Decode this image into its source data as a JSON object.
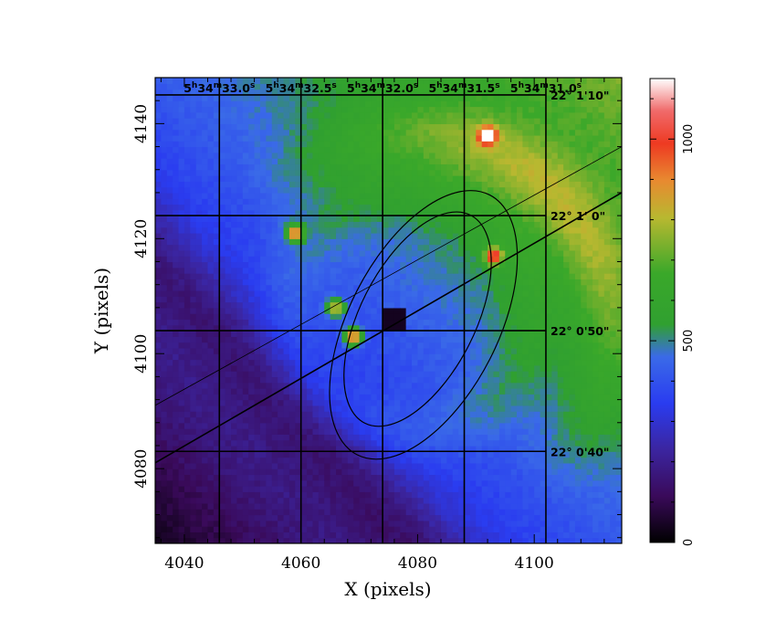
{
  "chart_data": {
    "type": "heatmap",
    "xlabel": "X (pixels)",
    "ylabel": "Y (pixels)",
    "xlim": [
      4035,
      4115
    ],
    "ylim": [
      4067,
      4148
    ],
    "x_ticks": [
      4040,
      4060,
      4080,
      4100
    ],
    "y_ticks": [
      4080,
      4100,
      4120,
      4140
    ],
    "x_tick_labels": [
      "4040",
      "4060",
      "4080",
      "4100"
    ],
    "y_tick_labels": [
      "4080",
      "4100",
      "4120",
      "4140"
    ],
    "grid": true,
    "ra_grid": [
      {
        "x": 4046,
        "h": "5",
        "m": "34",
        "s": "33.0"
      },
      {
        "x": 4060,
        "h": "5",
        "m": "34",
        "s": "32.5"
      },
      {
        "x": 4074,
        "h": "5",
        "m": "34",
        "s": "32.0"
      },
      {
        "x": 4088,
        "h": "5",
        "m": "34",
        "s": "31.5"
      },
      {
        "x": 4102,
        "h": "5",
        "m": "34",
        "s": "31.0"
      }
    ],
    "ra_units": {
      "h": "h",
      "m": "m",
      "s": "s"
    },
    "dec_grid": [
      {
        "y": 4145,
        "label": "22° 1'10\""
      },
      {
        "y": 4124,
        "label": "22° 1' 0\""
      },
      {
        "y": 4104,
        "label": "22° 0'50\""
      },
      {
        "y": 4083,
        "label": "22° 0'40\""
      }
    ],
    "ellipses": [
      {
        "cx": 4081,
        "cy": 4105,
        "rx": 25,
        "ry": 13,
        "angle_deg": -63
      },
      {
        "cx": 4080,
        "cy": 4106,
        "rx": 20,
        "ry": 10,
        "angle_deg": -63
      }
    ],
    "lines": [
      {
        "x1": 4035,
        "y1": 4081,
        "x2": 4115,
        "y2": 4128
      },
      {
        "x1": 4035,
        "y1": 4091,
        "x2": 4115,
        "y2": 4136
      }
    ],
    "features": {
      "center_dark": {
        "x": 4076,
        "y": 4106,
        "size": 4
      },
      "hot_spots": [
        {
          "x": 4069,
          "y": 4103,
          "value": 1100
        },
        {
          "x": 4066,
          "y": 4108,
          "value": 950
        },
        {
          "x": 4059,
          "y": 4121,
          "value": 1000
        },
        {
          "x": 4093,
          "y": 4117,
          "value": 1000
        },
        {
          "x": 4092,
          "y": 4138,
          "value": 1050
        }
      ]
    },
    "colorbar": {
      "min": 0,
      "max": 1150,
      "ticks": [
        0,
        500,
        1000
      ],
      "tick_labels": [
        "0",
        "500",
        "1000"
      ],
      "colormap": "rainbow"
    }
  }
}
